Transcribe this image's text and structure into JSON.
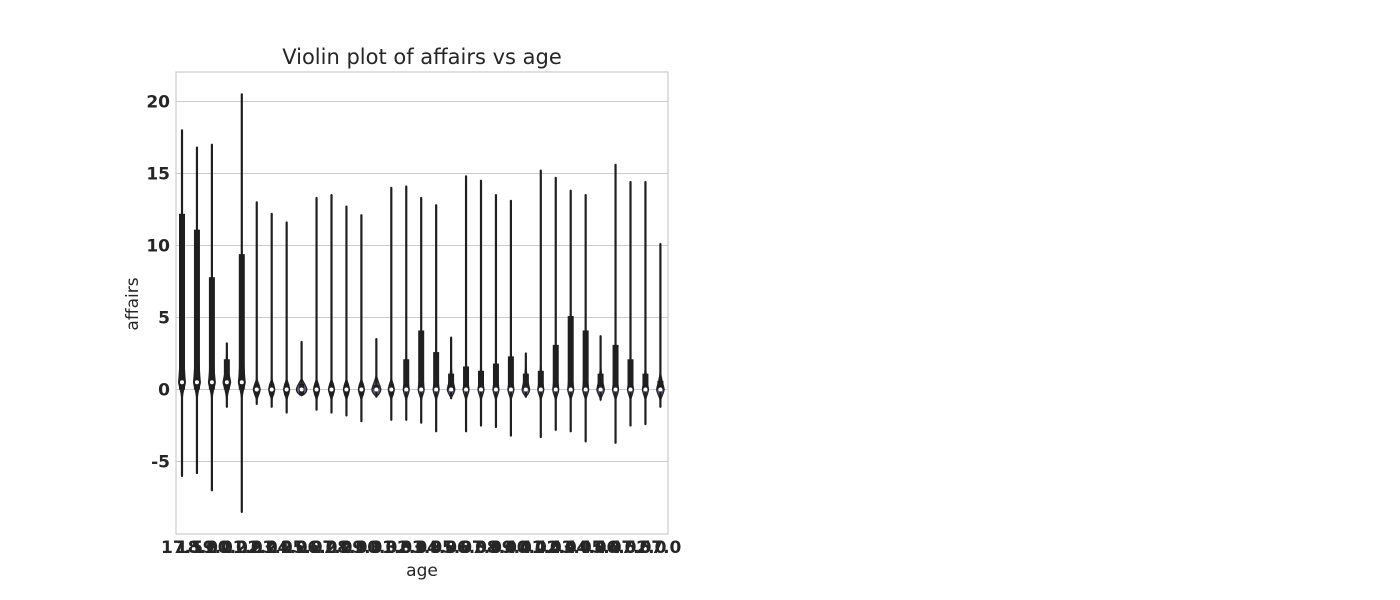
{
  "chart_data": {
    "type": "violin",
    "title": "Violin plot of affairs vs age",
    "xlabel": "age",
    "ylabel": "affairs",
    "ylim": [
      -10,
      22
    ],
    "yticks": [
      -5,
      0,
      5,
      10,
      15,
      20
    ],
    "grid": true,
    "categories": [
      "17.5",
      "18.0",
      "19.0",
      "20.0",
      "21.0",
      "22.0",
      "23.0",
      "24.0",
      "25.0",
      "26.0",
      "27.0",
      "28.0",
      "29.0",
      "30.0",
      "31.0",
      "32.0",
      "33.0",
      "34.0",
      "35.0",
      "36.0",
      "37.0",
      "38.0",
      "39.0",
      "40.0",
      "41.0",
      "42.0",
      "43.0",
      "44.0",
      "45.0",
      "46.0",
      "47.0",
      "52.0",
      "57.0"
    ],
    "violins": [
      {
        "min": -6,
        "max": 18,
        "q1": 0,
        "median": 0.5,
        "q3": 12.2,
        "body_width": 0.45
      },
      {
        "min": -5.8,
        "max": 16.8,
        "q1": 0,
        "median": 0.5,
        "q3": 11.1,
        "body_width": 0.45
      },
      {
        "min": -7,
        "max": 17,
        "q1": 0,
        "median": 0.5,
        "q3": 7.8,
        "body_width": 0.45
      },
      {
        "min": -1.2,
        "max": 3.2,
        "q1": 0,
        "median": 0.5,
        "q3": 2.1,
        "body_width": 0.5
      },
      {
        "min": -8.5,
        "max": 20.5,
        "q1": 0,
        "median": 0.5,
        "q3": 9.4,
        "body_width": 0.45
      },
      {
        "min": -1,
        "max": 13,
        "q1": 0,
        "median": 0,
        "q3": 0,
        "body_width": 0.45
      },
      {
        "min": -1.2,
        "max": 12.2,
        "q1": 0,
        "median": 0,
        "q3": 0,
        "body_width": 0.4
      },
      {
        "min": -1.6,
        "max": 11.6,
        "q1": 0,
        "median": 0,
        "q3": 0,
        "body_width": 0.4
      },
      {
        "min": -0.4,
        "max": 3.3,
        "q1": 0,
        "median": 0,
        "q3": 0,
        "body_width": 0.7
      },
      {
        "min": -1.4,
        "max": 13.3,
        "q1": 0,
        "median": 0,
        "q3": 0,
        "body_width": 0.4
      },
      {
        "min": -1.6,
        "max": 13.5,
        "q1": 0,
        "median": 0,
        "q3": 0,
        "body_width": 0.4
      },
      {
        "min": -1.8,
        "max": 12.7,
        "q1": 0,
        "median": 0,
        "q3": 0,
        "body_width": 0.4
      },
      {
        "min": -2.2,
        "max": 12.1,
        "q1": 0,
        "median": 0,
        "q3": 0,
        "body_width": 0.4
      },
      {
        "min": -0.5,
        "max": 3.5,
        "q1": 0,
        "median": 0,
        "q3": 0.3,
        "body_width": 0.6
      },
      {
        "min": -2.1,
        "max": 14,
        "q1": 0,
        "median": 0,
        "q3": 0,
        "body_width": 0.4
      },
      {
        "min": -2.1,
        "max": 14.1,
        "q1": 0,
        "median": 0,
        "q3": 2.1,
        "body_width": 0.4
      },
      {
        "min": -2.3,
        "max": 13.3,
        "q1": 0,
        "median": 0,
        "q3": 4.1,
        "body_width": 0.4
      },
      {
        "min": -2.9,
        "max": 12.8,
        "q1": 0,
        "median": 0,
        "q3": 2.6,
        "body_width": 0.4
      },
      {
        "min": -0.6,
        "max": 3.6,
        "q1": 0,
        "median": 0,
        "q3": 1.1,
        "body_width": 0.5
      },
      {
        "min": -2.9,
        "max": 14.8,
        "q1": 0,
        "median": 0,
        "q3": 1.6,
        "body_width": 0.4
      },
      {
        "min": -2.5,
        "max": 14.5,
        "q1": 0,
        "median": 0,
        "q3": 1.3,
        "body_width": 0.4
      },
      {
        "min": -2.6,
        "max": 13.5,
        "q1": 0,
        "median": 0,
        "q3": 1.8,
        "body_width": 0.4
      },
      {
        "min": -3.2,
        "max": 13.1,
        "q1": 0,
        "median": 0,
        "q3": 2.3,
        "body_width": 0.4
      },
      {
        "min": -0.5,
        "max": 2.5,
        "q1": 0,
        "median": 0,
        "q3": 1.1,
        "body_width": 0.5
      },
      {
        "min": -3.3,
        "max": 15.2,
        "q1": 0,
        "median": 0,
        "q3": 1.3,
        "body_width": 0.4
      },
      {
        "min": -2.8,
        "max": 14.7,
        "q1": 0,
        "median": 0,
        "q3": 3.1,
        "body_width": 0.4
      },
      {
        "min": -2.9,
        "max": 13.8,
        "q1": 0,
        "median": 0,
        "q3": 5.1,
        "body_width": 0.4
      },
      {
        "min": -3.6,
        "max": 13.5,
        "q1": 0,
        "median": 0,
        "q3": 4.1,
        "body_width": 0.4
      },
      {
        "min": -0.7,
        "max": 3.7,
        "q1": 0,
        "median": 0,
        "q3": 1.1,
        "body_width": 0.5
      },
      {
        "min": -3.7,
        "max": 15.6,
        "q1": 0,
        "median": 0,
        "q3": 3.1,
        "body_width": 0.4
      },
      {
        "min": -2.5,
        "max": 14.4,
        "q1": 0,
        "median": 0,
        "q3": 2.1,
        "body_width": 0.4
      },
      {
        "min": -2.4,
        "max": 14.4,
        "q1": 0,
        "median": 0,
        "q3": 1.1,
        "body_width": 0.4
      },
      {
        "min": -1.2,
        "max": 10.1,
        "q1": 0,
        "median": 0,
        "q3": 0.6,
        "body_width": 0.5
      }
    ]
  }
}
